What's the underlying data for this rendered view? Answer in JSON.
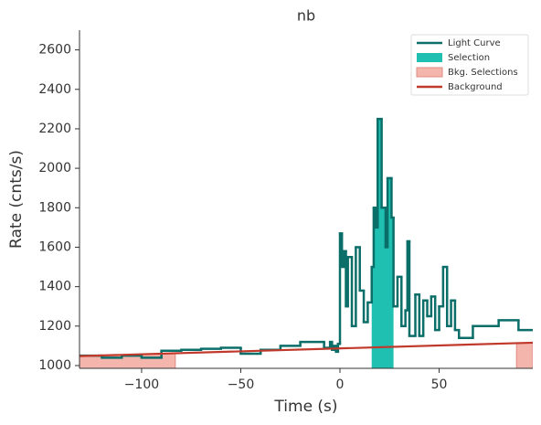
{
  "chart_data": {
    "type": "step",
    "title": "nb",
    "xlabel": "Time (s)",
    "ylabel": "Rate (cnts/s)",
    "xlim": [
      -131.3,
      97.2
    ],
    "ylim": [
      986,
      2700
    ],
    "xticks": [
      {
        "value": -100,
        "label": "−100"
      },
      {
        "value": -50,
        "label": "−50"
      },
      0,
      50
    ],
    "yticks": [
      1000,
      1200,
      1400,
      1600,
      1800,
      2000,
      2200,
      2400,
      2600
    ],
    "legend": "upper right",
    "series": [
      {
        "name": "Light Curve",
        "color": "#0b6e69",
        "bins": [
          -131.3,
          -120,
          -110,
          -100,
          -90,
          -80,
          -70,
          -60,
          -50,
          -40,
          -30,
          -20,
          -8,
          -5,
          -4,
          -3,
          -2,
          -1,
          0,
          1,
          2,
          3,
          4,
          6,
          8,
          10,
          12,
          14,
          16,
          17,
          18,
          19,
          21,
          23,
          24,
          26,
          27,
          29,
          31,
          33,
          34,
          35,
          38,
          40,
          42,
          44,
          46,
          48,
          50,
          52,
          54,
          56,
          58,
          60,
          67,
          80,
          90,
          97.2
        ],
        "values": [
          1050,
          1040,
          1050,
          1040,
          1075,
          1080,
          1085,
          1090,
          1060,
          1080,
          1100,
          1120,
          1090,
          1120,
          1080,
          1100,
          1070,
          1110,
          1670,
          1500,
          1580,
          1300,
          1550,
          1200,
          1600,
          1380,
          1220,
          1320,
          1500,
          1800,
          1700,
          2250,
          1800,
          1600,
          1950,
          1750,
          1300,
          1450,
          1200,
          1280,
          1630,
          1150,
          1360,
          1150,
          1330,
          1250,
          1350,
          1180,
          1300,
          1500,
          1200,
          1330,
          1180,
          1140,
          1200,
          1230,
          1180
        ]
      },
      {
        "name": "Selection",
        "color": "#1fbfb1",
        "range": [
          16,
          27
        ]
      },
      {
        "name": "Bkg. Selections",
        "color": "#f4b5ad",
        "ranges": [
          [
            -131.3,
            -83
          ],
          [
            89,
            97.2
          ]
        ]
      },
      {
        "name": "Background",
        "color": "#c0392b",
        "x": [
          -131.3,
          97.2
        ],
        "values": [
          1048,
          1116
        ]
      }
    ]
  }
}
